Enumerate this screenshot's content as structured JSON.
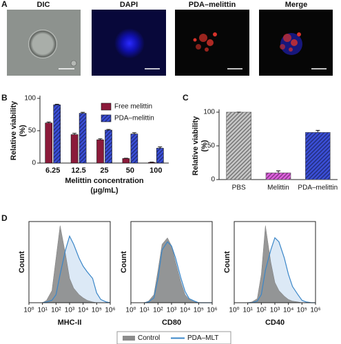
{
  "panel_labels": [
    "A",
    "B",
    "C",
    "D"
  ],
  "images": [
    "DIC",
    "DAPI",
    "PDA–melittin",
    "Merge"
  ],
  "chart_data": [
    {
      "type": "bar",
      "xlabel": [
        "Melittin concentration",
        "(μg/mL)"
      ],
      "ylabel": [
        "Relative viability",
        "(%)"
      ],
      "categories": [
        "6.25",
        "12.5",
        "25",
        "50",
        "100"
      ],
      "series": [
        {
          "name": "Free melittin",
          "color": "#8b1a3a",
          "hatch": false,
          "values": [
            62,
            44,
            36,
            7,
            1
          ],
          "errors": [
            1.5,
            2,
            1.5,
            0.5,
            0.5
          ]
        },
        {
          "name": "PDA–melittin",
          "color": "#3b4fd8",
          "hatch": true,
          "values": [
            90,
            77,
            51,
            45,
            23
          ],
          "errors": [
            1,
            1.5,
            1,
            2,
            2
          ]
        }
      ],
      "ylim": [
        0,
        100
      ],
      "yticks": [
        0,
        50,
        100
      ],
      "legend": "upper right"
    },
    {
      "type": "bar",
      "ylabel": [
        "Relative viability",
        "(%)"
      ],
      "categories": [
        "PBS",
        "Melittin",
        "PDA–melittin"
      ],
      "values": [
        100,
        10,
        70
      ],
      "errors": [
        0,
        3,
        3
      ],
      "colors": [
        "#c8c8c8",
        "#e060e0",
        "#3b4fd8"
      ],
      "hatch": true,
      "ylim": [
        0,
        100
      ],
      "yticks": [
        0,
        50,
        100
      ]
    },
    {
      "type": "area",
      "log_x": true,
      "xlim": [
        1,
        1000000
      ],
      "xticks": [
        {
          "value": 1,
          "label": "10⁰"
        },
        {
          "value": 10,
          "label": "10¹"
        },
        {
          "value": 100,
          "label": "10²"
        },
        {
          "value": 1000,
          "label": "10³"
        },
        {
          "value": 10000,
          "label": "10⁴"
        },
        {
          "value": 100000,
          "label": "10⁵"
        },
        {
          "value": 1000000,
          "label": "10⁶"
        }
      ],
      "ylim": [
        0,
        100
      ],
      "ylabel": "Count",
      "x": [
        10,
        20,
        50,
        100,
        200,
        500,
        1000,
        2000,
        5000,
        10000,
        20000,
        50000,
        100000,
        200000,
        500000,
        1000000
      ],
      "series": [
        {
          "name": "Control",
          "color": "#8c8c8c"
        },
        {
          "name": "PDA–MLT",
          "color": "#3a86c8"
        }
      ],
      "panels": [
        {
          "xlabel": "MHC-II",
          "values": [
            [
              0,
              3,
              15,
              55,
              95,
              60,
              30,
              18,
              10,
              6,
              3,
              1,
              0,
              0,
              0,
              0
            ],
            [
              0,
              1,
              3,
              10,
              35,
              65,
              82,
              72,
              55,
              45,
              38,
              30,
              12,
              4,
              1,
              0
            ]
          ]
        },
        {
          "xlabel": "CD80",
          "values": [
            [
              0,
              2,
              10,
              40,
              72,
              80,
              70,
              50,
              25,
              10,
              4,
              1,
              0,
              0,
              0,
              0
            ],
            [
              0,
              1,
              6,
              30,
              65,
              75,
              70,
              55,
              30,
              14,
              5,
              2,
              0,
              0,
              0,
              0
            ]
          ]
        },
        {
          "xlabel": "CD40",
          "values": [
            [
              0,
              1,
              5,
              35,
              95,
              50,
              25,
              15,
              8,
              4,
              2,
              1,
              0,
              0,
              0,
              0
            ],
            [
              0,
              0,
              2,
              10,
              40,
              65,
              80,
              75,
              55,
              35,
              20,
              10,
              3,
              1,
              0,
              0
            ]
          ]
        }
      ],
      "legend": "lower center"
    }
  ]
}
